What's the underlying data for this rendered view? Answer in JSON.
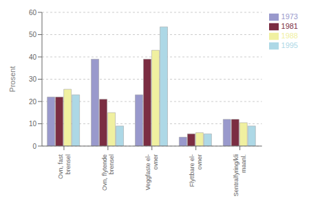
{
  "chart_data": {
    "type": "bar",
    "categories": [
      "Ovn, fast\nbrensel",
      "Ovn, flytende\nbrensel",
      "Veggfaste el-\novner",
      "Flyttbare el-\novner",
      "Sentralfyring/kli\nmaanl."
    ],
    "series": [
      {
        "name": "1973",
        "color": "#9999CC",
        "values": [
          22,
          39,
          23,
          4,
          12
        ]
      },
      {
        "name": "1981",
        "color": "#7B2D42",
        "values": [
          22,
          21,
          39,
          5.5,
          12
        ]
      },
      {
        "name": "1988",
        "color": "#F0F0A0",
        "values": [
          25.5,
          15,
          43,
          6,
          10.5
        ]
      },
      {
        "name": "1995",
        "color": "#ADD8E6",
        "values": [
          23,
          9,
          53.5,
          5.5,
          9
        ]
      }
    ],
    "ylabel": "Prosent",
    "ylim": [
      0,
      60
    ],
    "yticks": [
      0,
      10,
      20,
      30,
      40,
      50,
      60
    ],
    "grid": true,
    "legend": "right"
  }
}
